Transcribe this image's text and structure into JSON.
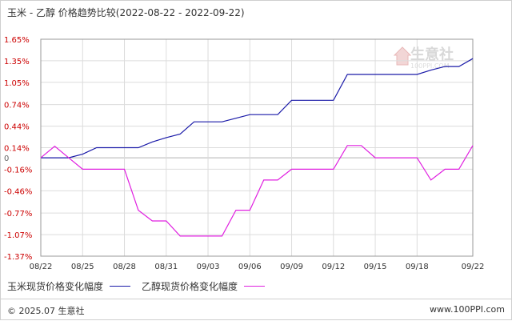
{
  "title": "玉米 - 乙醇 价格趋势比较(2022-08-22 - 2022-09-22)",
  "watermark": {
    "text": "生意社",
    "subtext": "100PPI.COM"
  },
  "footer": {
    "left": "© 2025.07 生意社",
    "right": "www.100PPI.com"
  },
  "colors": {
    "corn": "#1a1aa8",
    "ethanol": "#e020e0",
    "grid": "#dcdcdc",
    "axis": "#999999",
    "red_ticks": "#cc0000",
    "zero_tick": "#666666"
  },
  "chart_data": {
    "type": "line",
    "title": "玉米 - 乙醇 价格趋势比较(2022-08-22 - 2022-09-22)",
    "x": [
      "08/22",
      "08/23",
      "08/24",
      "08/25",
      "08/26",
      "08/27",
      "08/28",
      "08/29",
      "08/30",
      "08/31",
      "09/01",
      "09/02",
      "09/03",
      "09/04",
      "09/05",
      "09/06",
      "09/07",
      "09/08",
      "09/09",
      "09/10",
      "09/11",
      "09/12",
      "09/13",
      "09/14",
      "09/15",
      "09/16",
      "09/17",
      "09/18",
      "09/19",
      "09/20",
      "09/21",
      "09/22"
    ],
    "x_tick_labels": [
      "08/22",
      "08/25",
      "08/28",
      "08/31",
      "09/03",
      "09/06",
      "09/09",
      "09/12",
      "09/15",
      "09/18",
      "09/22"
    ],
    "y_tick_labels": [
      "1.65%",
      "1.35%",
      "1.05%",
      "0.74%",
      "0.44%",
      "0.14%",
      "0",
      "-0.16%",
      "-0.46%",
      "-0.77%",
      "-1.07%",
      "-1.37%"
    ],
    "y_tick_values": [
      1.65,
      1.35,
      1.05,
      0.74,
      0.44,
      0.14,
      0,
      -0.16,
      -0.46,
      -0.77,
      -1.07,
      -1.37
    ],
    "ylim": [
      -1.37,
      1.65
    ],
    "grid": true,
    "legend_position": "bottom",
    "series": [
      {
        "name": "玉米现货价格变化幅度",
        "color": "#1a1aa8",
        "values": [
          0,
          0,
          0,
          0.05,
          0.14,
          0.14,
          0.14,
          0.14,
          0.22,
          0.28,
          0.33,
          0.5,
          0.5,
          0.5,
          0.55,
          0.6,
          0.6,
          0.6,
          0.8,
          0.8,
          0.8,
          0.8,
          1.16,
          1.16,
          1.16,
          1.16,
          1.16,
          1.16,
          1.22,
          1.27,
          1.27,
          1.38
        ]
      },
      {
        "name": "乙醇现货价格变化幅度",
        "color": "#e020e0",
        "values": [
          0,
          0.16,
          0,
          -0.16,
          -0.16,
          -0.16,
          -0.16,
          -0.73,
          -0.88,
          -0.88,
          -1.09,
          -1.09,
          -1.09,
          -1.09,
          -0.73,
          -0.73,
          -0.31,
          -0.31,
          -0.16,
          -0.16,
          -0.16,
          -0.16,
          0.17,
          0.17,
          0,
          0,
          0,
          0,
          -0.31,
          -0.16,
          -0.16,
          0.17
        ]
      }
    ]
  }
}
